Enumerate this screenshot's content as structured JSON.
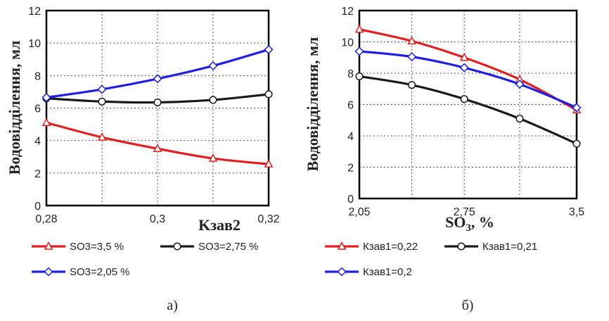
{
  "chart_data": [
    {
      "type": "line",
      "panel_label": "а)",
      "xlabel": "Kзав2",
      "ylabel": "Водовідділення, мл",
      "x_tick_labels": [
        "0,28",
        "0,3",
        "0,32"
      ],
      "x_tick_values": [
        0.28,
        0.3,
        0.32
      ],
      "x": [
        0.28,
        0.29,
        0.3,
        0.31,
        0.32
      ],
      "xlim": [
        0.28,
        0.32
      ],
      "ylim": [
        0,
        12
      ],
      "y_ticks": [
        0,
        2,
        4,
        6,
        8,
        10,
        12
      ],
      "grid": true,
      "legend_position": "bottom",
      "series": [
        {
          "name": "SO3=3,5 %",
          "color": "#e02020",
          "marker": "triangle",
          "values": [
            5.1,
            4.2,
            3.5,
            2.9,
            2.55
          ]
        },
        {
          "name": "SO3=2,75 %",
          "color": "#1a1a1a",
          "marker": "circle",
          "values": [
            6.6,
            6.4,
            6.35,
            6.5,
            6.85
          ]
        },
        {
          "name": "SO3=2,05 %",
          "color": "#2020e0",
          "marker": "diamond",
          "values": [
            6.65,
            7.15,
            7.8,
            8.6,
            9.6
          ]
        }
      ]
    },
    {
      "type": "line",
      "panel_label": "б)",
      "xlabel": "SO",
      "xlabel_sub": "3",
      "xlabel_suffix": ", %",
      "ylabel": "Водовідділення, мл",
      "x_tick_labels": [
        "2,05",
        "2,75",
        "3,5"
      ],
      "x_tick_values": [
        2.05,
        2.75,
        3.5
      ],
      "x": [
        2.05,
        2.4,
        2.75,
        3.12,
        3.5
      ],
      "xlim": [
        2.05,
        3.5
      ],
      "ylim": [
        0,
        12
      ],
      "y_ticks": [
        0,
        2,
        4,
        6,
        8,
        10,
        12
      ],
      "grid": true,
      "legend_position": "bottom",
      "series": [
        {
          "name": "Кзав1=0,22",
          "color": "#e02020",
          "marker": "triangle",
          "values": [
            10.8,
            10.05,
            9.0,
            7.6,
            5.65
          ]
        },
        {
          "name": "Кзав1=0,21",
          "color": "#1a1a1a",
          "marker": "circle",
          "values": [
            7.8,
            7.25,
            6.35,
            5.1,
            3.5
          ]
        },
        {
          "name": "Кзав1=0,2",
          "color": "#2020e0",
          "marker": "diamond",
          "values": [
            9.4,
            9.05,
            8.35,
            7.3,
            5.8
          ]
        }
      ]
    }
  ]
}
